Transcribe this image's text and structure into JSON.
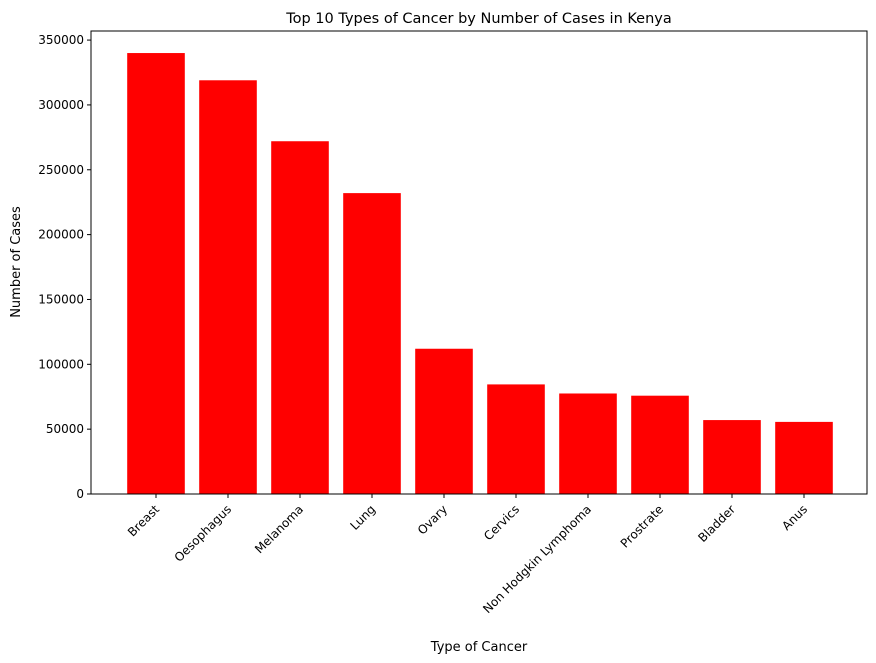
{
  "chart_data": {
    "type": "bar",
    "title": "Top 10 Types of Cancer by Number of Cases in Kenya",
    "xlabel": "Type of Cancer",
    "ylabel": "Number of Cases",
    "categories": [
      "Breast",
      "Oesophagus",
      "Melanoma",
      "Lung",
      "Ovary",
      "Cervics",
      "Non Hodgkin Lymphoma",
      "Prostrate",
      "Bladder",
      "Anus"
    ],
    "values": [
      340000,
      319000,
      272000,
      232000,
      112000,
      84500,
      77500,
      75800,
      57000,
      55600
    ],
    "yticks": [
      0,
      50000,
      100000,
      150000,
      200000,
      250000,
      300000,
      350000
    ],
    "ylim": [
      0,
      357000
    ],
    "grid": false,
    "legend": "none",
    "bar_color": "#ff0000"
  }
}
